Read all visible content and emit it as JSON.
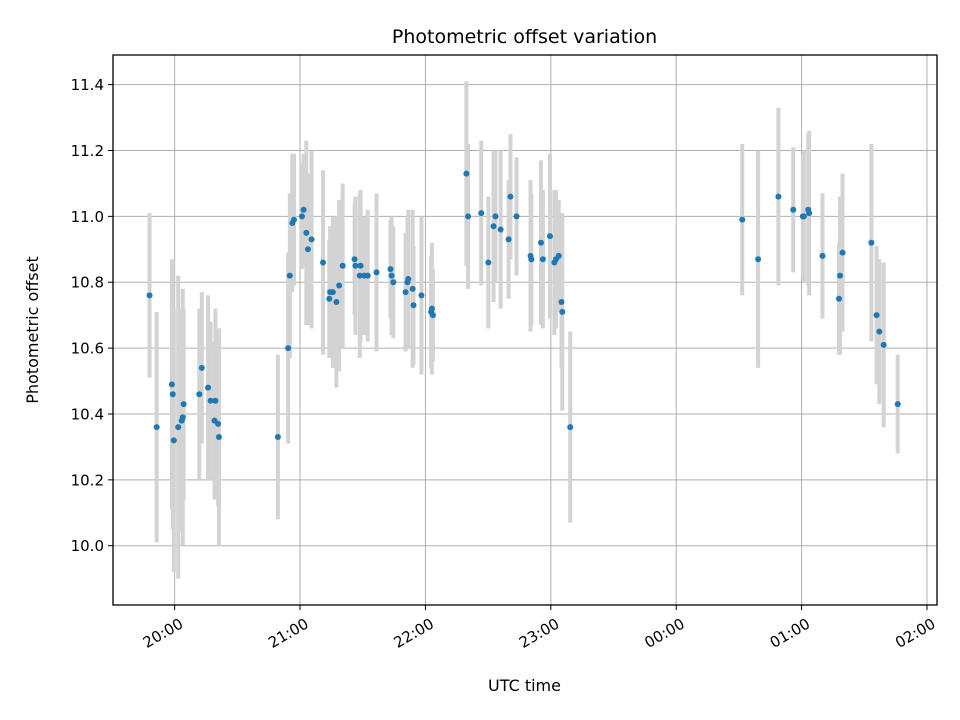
{
  "chart_data": {
    "type": "scatter",
    "title": "Photometric offset variation",
    "xlabel": "UTC time",
    "ylabel": "Photometric offset",
    "x_unit": "minutes",
    "x_ticks": [
      {
        "value": 0,
        "label": "20:00"
      },
      {
        "value": 60,
        "label": "21:00"
      },
      {
        "value": 120,
        "label": "22:00"
      },
      {
        "value": 180,
        "label": "23:00"
      },
      {
        "value": 240,
        "label": "00:00"
      },
      {
        "value": 300,
        "label": "01:00"
      },
      {
        "value": 360,
        "label": "02:00"
      }
    ],
    "y_ticks": [
      10.0,
      10.2,
      10.4,
      10.6,
      10.8,
      11.0,
      11.2,
      11.4
    ],
    "xlim": [
      -29.5,
      364.8
    ],
    "ylim": [
      9.82,
      11.49
    ],
    "grid": true,
    "colors": {
      "point": "#1f77b4",
      "errorbar": "#d3d3d3"
    },
    "points": [
      [
        -12.0,
        10.76,
        0.25
      ],
      [
        -8.6,
        10.36,
        0.35
      ],
      [
        -1.3,
        10.49,
        0.38
      ],
      [
        -0.9,
        10.46,
        0.41
      ],
      [
        -0.4,
        10.32,
        0.4
      ],
      [
        1.7,
        10.36,
        0.46
      ],
      [
        3.9,
        10.39,
        0.39
      ],
      [
        3.4,
        10.38,
        0.34
      ],
      [
        4.3,
        10.43,
        0.29
      ],
      [
        11.8,
        10.46,
        0.26
      ],
      [
        13.0,
        10.54,
        0.23
      ],
      [
        16.0,
        10.48,
        0.28
      ],
      [
        17.2,
        10.44,
        0.24
      ],
      [
        19.1,
        10.38,
        0.24
      ],
      [
        19.5,
        10.44,
        0.28
      ],
      [
        20.8,
        10.37,
        0.25
      ],
      [
        21.2,
        10.33,
        0.33
      ],
      [
        49.4,
        10.33,
        0.25
      ],
      [
        54.3,
        10.6,
        0.29
      ],
      [
        55.1,
        10.82,
        0.25
      ],
      [
        56.3,
        10.98,
        0.21
      ],
      [
        57.1,
        10.99,
        0.2
      ],
      [
        60.9,
        11.0,
        0.16
      ],
      [
        61.7,
        11.02,
        0.17
      ],
      [
        63.0,
        10.95,
        0.28
      ],
      [
        63.8,
        10.9,
        0.23
      ],
      [
        65.5,
        10.93,
        0.27
      ],
      [
        71.0,
        10.86,
        0.28
      ],
      [
        74.0,
        10.75,
        0.18
      ],
      [
        74.4,
        10.77,
        0.2
      ],
      [
        75.7,
        10.77,
        0.23
      ],
      [
        77.4,
        10.74,
        0.26
      ],
      [
        78.7,
        10.79,
        0.26
      ],
      [
        80.4,
        10.85,
        0.25
      ],
      [
        86.1,
        10.87,
        0.17
      ],
      [
        86.5,
        10.85,
        0.21
      ],
      [
        88.6,
        10.82,
        0.25
      ],
      [
        89.0,
        10.85,
        0.23
      ],
      [
        90.7,
        10.82,
        0.18
      ],
      [
        92.4,
        10.82,
        0.2
      ],
      [
        96.6,
        10.83,
        0.24
      ],
      [
        103.3,
        10.84,
        0.15
      ],
      [
        103.8,
        10.82,
        0.18
      ],
      [
        104.6,
        10.8,
        0.17
      ],
      [
        110.5,
        10.77,
        0.18
      ],
      [
        111.4,
        10.8,
        0.2
      ],
      [
        111.8,
        10.81,
        0.21
      ],
      [
        113.9,
        10.78,
        0.24
      ],
      [
        114.3,
        10.73,
        0.18
      ],
      [
        118.1,
        10.76,
        0.24
      ],
      [
        122.7,
        10.71,
        0.17
      ],
      [
        123.1,
        10.72,
        0.2
      ],
      [
        123.6,
        10.7,
        0.14
      ],
      [
        139.6,
        11.13,
        0.28
      ],
      [
        140.4,
        11.0,
        0.22
      ],
      [
        146.7,
        11.01,
        0.22
      ],
      [
        150.1,
        10.86,
        0.2
      ],
      [
        152.6,
        10.97,
        0.23
      ],
      [
        153.5,
        11.0,
        0.2
      ],
      [
        156.0,
        10.96,
        0.24
      ],
      [
        159.8,
        10.93,
        0.18
      ],
      [
        160.7,
        11.06,
        0.19
      ],
      [
        163.6,
        11.0,
        0.18
      ],
      [
        170.3,
        10.88,
        0.23
      ],
      [
        170.7,
        10.87,
        0.2
      ],
      [
        175.3,
        10.92,
        0.25
      ],
      [
        176.2,
        10.87,
        0.21
      ],
      [
        179.6,
        10.94,
        0.25
      ],
      [
        181.7,
        10.86,
        0.22
      ],
      [
        182.5,
        10.87,
        0.21
      ],
      [
        183.8,
        10.88,
        0.17
      ],
      [
        185.1,
        10.74,
        0.2
      ],
      [
        185.5,
        10.71,
        0.3
      ],
      [
        189.3,
        10.36,
        0.29
      ],
      [
        271.6,
        10.99,
        0.23
      ],
      [
        279.2,
        10.87,
        0.33
      ],
      [
        288.9,
        11.06,
        0.27
      ],
      [
        296.0,
        11.02,
        0.19
      ],
      [
        300.6,
        11.0,
        0.19
      ],
      [
        301.1,
        11.0,
        0.2
      ],
      [
        303.2,
        11.02,
        0.23
      ],
      [
        303.6,
        11.01,
        0.25
      ],
      [
        310.0,
        10.88,
        0.19
      ],
      [
        317.9,
        10.75,
        0.17
      ],
      [
        318.4,
        10.82,
        0.24
      ],
      [
        319.6,
        10.89,
        0.24
      ],
      [
        333.4,
        10.92,
        0.3
      ],
      [
        335.9,
        10.7,
        0.21
      ],
      [
        337.2,
        10.65,
        0.22
      ],
      [
        339.3,
        10.61,
        0.25
      ],
      [
        346.0,
        10.43,
        0.15
      ]
    ]
  }
}
